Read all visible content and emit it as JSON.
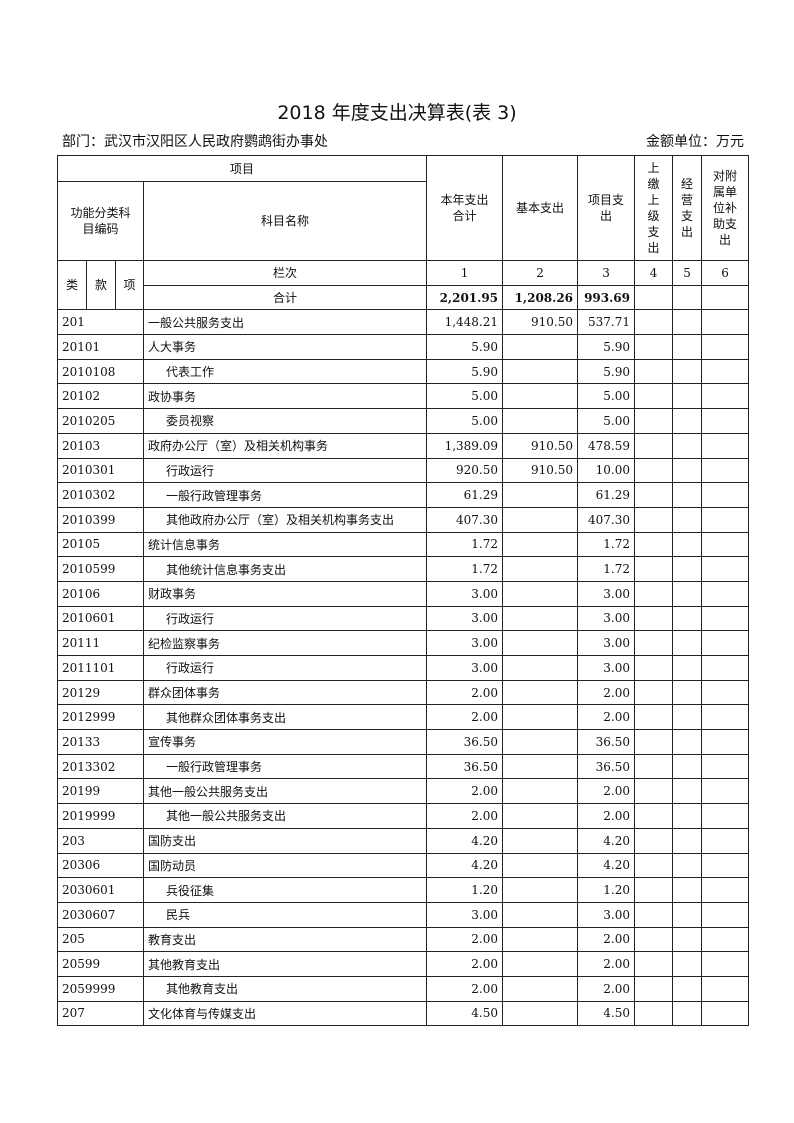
{
  "title": "2018 年度支出决算表(表 3)",
  "department": "部门：武汉市汉阳区人民政府鹦鹉街办事处",
  "unit": "金额单位：万元",
  "headers": {
    "project": "项目",
    "func_code": "功能分类科目编码",
    "subject_name": "科目名称",
    "col1": "本年支出合计",
    "col2": "基本支出",
    "col3": "项目支出",
    "col4": "上缴上级支出",
    "col5": "经营支出",
    "col6": "对附属单位补助支出",
    "lei": "类",
    "kuan": "款",
    "xiang": "项",
    "lanci": "栏次",
    "nums": [
      "1",
      "2",
      "3",
      "4",
      "5",
      "6"
    ]
  },
  "total": {
    "label": "合计",
    "c1": "2,201.95",
    "c2": "1,208.26",
    "c3": "993.69"
  },
  "rows": [
    {
      "code": "201",
      "name": "一般公共服务支出",
      "c1": "1,448.21",
      "c2": "910.50",
      "c3": "537.71"
    },
    {
      "code": "20101",
      "name": "人大事务",
      "c1": "5.90",
      "c2": "",
      "c3": "5.90"
    },
    {
      "code": "2010108",
      "name": "代表工作",
      "c1": "5.90",
      "c2": "",
      "c3": "5.90"
    },
    {
      "code": "20102",
      "name": "政协事务",
      "c1": "5.00",
      "c2": "",
      "c3": "5.00"
    },
    {
      "code": "2010205",
      "name": "委员视察",
      "c1": "5.00",
      "c2": "",
      "c3": "5.00"
    },
    {
      "code": "20103",
      "name": "政府办公厅（室）及相关机构事务",
      "c1": "1,389.09",
      "c2": "910.50",
      "c3": "478.59"
    },
    {
      "code": "2010301",
      "name": "行政运行",
      "c1": "920.50",
      "c2": "910.50",
      "c3": "10.00"
    },
    {
      "code": "2010302",
      "name": "一般行政管理事务",
      "c1": "61.29",
      "c2": "",
      "c3": "61.29"
    },
    {
      "code": "2010399",
      "name": "其他政府办公厅（室）及相关机构事务支出",
      "c1": "407.30",
      "c2": "",
      "c3": "407.30"
    },
    {
      "code": "20105",
      "name": "统计信息事务",
      "c1": "1.72",
      "c2": "",
      "c3": "1.72"
    },
    {
      "code": "2010599",
      "name": "其他统计信息事务支出",
      "c1": "1.72",
      "c2": "",
      "c3": "1.72"
    },
    {
      "code": "20106",
      "name": "财政事务",
      "c1": "3.00",
      "c2": "",
      "c3": "3.00"
    },
    {
      "code": "2010601",
      "name": "行政运行",
      "c1": "3.00",
      "c2": "",
      "c3": "3.00"
    },
    {
      "code": "20111",
      "name": "纪检监察事务",
      "c1": "3.00",
      "c2": "",
      "c3": "3.00"
    },
    {
      "code": "2011101",
      "name": "行政运行",
      "c1": "3.00",
      "c2": "",
      "c3": "3.00"
    },
    {
      "code": "20129",
      "name": "群众团体事务",
      "c1": "2.00",
      "c2": "",
      "c3": "2.00"
    },
    {
      "code": "2012999",
      "name": "其他群众团体事务支出",
      "c1": "2.00",
      "c2": "",
      "c3": "2.00"
    },
    {
      "code": "20133",
      "name": "宣传事务",
      "c1": "36.50",
      "c2": "",
      "c3": "36.50"
    },
    {
      "code": "2013302",
      "name": "一般行政管理事务",
      "c1": "36.50",
      "c2": "",
      "c3": "36.50"
    },
    {
      "code": "20199",
      "name": "其他一般公共服务支出",
      "c1": "2.00",
      "c2": "",
      "c3": "2.00"
    },
    {
      "code": "2019999",
      "name": "其他一般公共服务支出",
      "c1": "2.00",
      "c2": "",
      "c3": "2.00"
    },
    {
      "code": "203",
      "name": "国防支出",
      "c1": "4.20",
      "c2": "",
      "c3": "4.20"
    },
    {
      "code": "20306",
      "name": "国防动员",
      "c1": "4.20",
      "c2": "",
      "c3": "4.20"
    },
    {
      "code": "2030601",
      "name": "兵役征集",
      "c1": "1.20",
      "c2": "",
      "c3": "1.20"
    },
    {
      "code": "2030607",
      "name": "民兵",
      "c1": "3.00",
      "c2": "",
      "c3": "3.00"
    },
    {
      "code": "205",
      "name": "教育支出",
      "c1": "2.00",
      "c2": "",
      "c3": "2.00"
    },
    {
      "code": "20599",
      "name": "其他教育支出",
      "c1": "2.00",
      "c2": "",
      "c3": "2.00"
    },
    {
      "code": "2059999",
      "name": "其他教育支出",
      "c1": "2.00",
      "c2": "",
      "c3": "2.00"
    },
    {
      "code": "207",
      "name": "文化体育与传媒支出",
      "c1": "4.50",
      "c2": "",
      "c3": "4.50"
    }
  ]
}
